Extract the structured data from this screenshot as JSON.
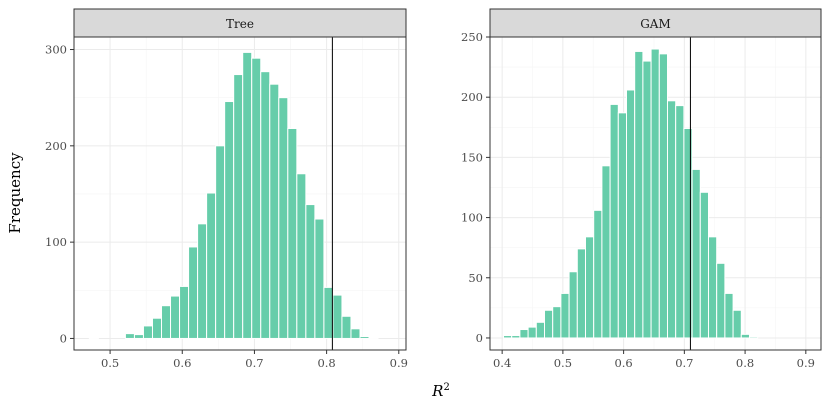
{
  "axis": {
    "xlabel_base": "R",
    "xlabel_sup": "2",
    "ylabel": "Frequency"
  },
  "chart_data": [
    {
      "type": "bar",
      "title": "Tree",
      "xlim": [
        0.45,
        0.91
      ],
      "ylim": [
        -12,
        313
      ],
      "x_ticks": [
        0.5,
        0.6,
        0.7,
        0.8,
        0.9
      ],
      "y_ticks": [
        0,
        100,
        200,
        300
      ],
      "reference_line": 0.808,
      "bin_width": 0.0125,
      "bins": [
        {
          "x": 0.4775,
          "y": 1
        },
        {
          "x": 0.5275,
          "y": 5
        },
        {
          "x": 0.54,
          "y": 4
        },
        {
          "x": 0.5525,
          "y": 13
        },
        {
          "x": 0.565,
          "y": 21
        },
        {
          "x": 0.5775,
          "y": 34
        },
        {
          "x": 0.59,
          "y": 44
        },
        {
          "x": 0.6025,
          "y": 54
        },
        {
          "x": 0.615,
          "y": 95
        },
        {
          "x": 0.6275,
          "y": 119
        },
        {
          "x": 0.64,
          "y": 151
        },
        {
          "x": 0.6525,
          "y": 200
        },
        {
          "x": 0.665,
          "y": 246
        },
        {
          "x": 0.6775,
          "y": 274
        },
        {
          "x": 0.69,
          "y": 297
        },
        {
          "x": 0.7025,
          "y": 291
        },
        {
          "x": 0.715,
          "y": 277
        },
        {
          "x": 0.7275,
          "y": 264
        },
        {
          "x": 0.74,
          "y": 250
        },
        {
          "x": 0.7525,
          "y": 218
        },
        {
          "x": 0.765,
          "y": 171
        },
        {
          "x": 0.7775,
          "y": 139
        },
        {
          "x": 0.79,
          "y": 124
        },
        {
          "x": 0.8025,
          "y": 53
        },
        {
          "x": 0.815,
          "y": 45
        },
        {
          "x": 0.8275,
          "y": 23
        },
        {
          "x": 0.84,
          "y": 10
        },
        {
          "x": 0.8525,
          "y": 2
        },
        {
          "x": 0.865,
          "y": 1
        }
      ]
    },
    {
      "type": "bar",
      "title": "GAM",
      "xlim": [
        0.38,
        0.925
      ],
      "ylim": [
        -10,
        250
      ],
      "x_ticks": [
        0.4,
        0.5,
        0.6,
        0.7,
        0.8,
        0.9
      ],
      "y_ticks": [
        0,
        50,
        100,
        150,
        200,
        250
      ],
      "reference_line": 0.71,
      "bin_width": 0.0135,
      "bins": [
        {
          "x": 0.409,
          "y": 2
        },
        {
          "x": 0.4225,
          "y": 2
        },
        {
          "x": 0.436,
          "y": 7
        },
        {
          "x": 0.4495,
          "y": 9
        },
        {
          "x": 0.463,
          "y": 13
        },
        {
          "x": 0.4765,
          "y": 23
        },
        {
          "x": 0.49,
          "y": 26
        },
        {
          "x": 0.5035,
          "y": 37
        },
        {
          "x": 0.517,
          "y": 55
        },
        {
          "x": 0.5305,
          "y": 74
        },
        {
          "x": 0.544,
          "y": 84
        },
        {
          "x": 0.5575,
          "y": 106
        },
        {
          "x": 0.571,
          "y": 143
        },
        {
          "x": 0.5845,
          "y": 194
        },
        {
          "x": 0.598,
          "y": 187
        },
        {
          "x": 0.6115,
          "y": 206
        },
        {
          "x": 0.625,
          "y": 238
        },
        {
          "x": 0.6385,
          "y": 230
        },
        {
          "x": 0.652,
          "y": 240
        },
        {
          "x": 0.6655,
          "y": 236
        },
        {
          "x": 0.679,
          "y": 197
        },
        {
          "x": 0.6925,
          "y": 193
        },
        {
          "x": 0.706,
          "y": 174
        },
        {
          "x": 0.7195,
          "y": 140
        },
        {
          "x": 0.733,
          "y": 121
        },
        {
          "x": 0.7465,
          "y": 84
        },
        {
          "x": 0.76,
          "y": 62
        },
        {
          "x": 0.7735,
          "y": 37
        },
        {
          "x": 0.787,
          "y": 23
        },
        {
          "x": 0.8005,
          "y": 3
        },
        {
          "x": 0.814,
          "y": 1
        }
      ]
    }
  ]
}
